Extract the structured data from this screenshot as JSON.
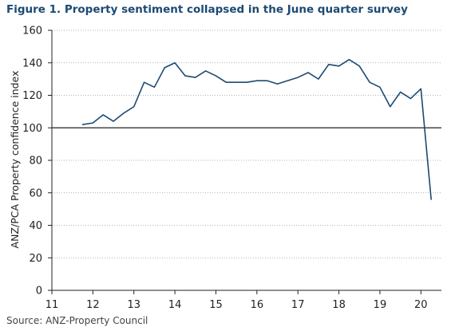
{
  "figure_title": "Figure 1. Property sentiment collapsed in the June quarter survey",
  "source": "Source: ANZ-Property Council",
  "colors": {
    "title": "#1c4a72",
    "line": "#1c4a72",
    "grid": "#9a9a9a",
    "axis": "#222222"
  },
  "chart_data": {
    "type": "line",
    "title": "Figure 1. Property sentiment collapsed in the June quarter survey",
    "xlabel": "",
    "ylabel": "ANZ/PCA Property confidence index",
    "xlim": [
      11,
      20.5
    ],
    "ylim": [
      0,
      160
    ],
    "x_ticks": [
      "11",
      "12",
      "13",
      "14",
      "15",
      "16",
      "17",
      "18",
      "19",
      "20"
    ],
    "y_ticks": [
      "0",
      "20",
      "40",
      "60",
      "80",
      "100",
      "120",
      "140",
      "160"
    ],
    "grid": "horizontal dotted",
    "reference_line": 100,
    "series": [
      {
        "x": [
          11.75,
          12.0,
          12.25,
          12.5,
          12.75,
          13.0,
          13.25,
          13.5,
          13.75,
          14.0,
          14.25,
          14.5,
          14.75,
          15.0,
          15.25,
          15.5,
          15.75,
          16.0,
          16.25,
          16.5,
          16.75,
          17.0,
          17.25,
          17.5,
          17.75,
          18.0,
          18.25,
          18.5,
          18.75,
          19.0,
          19.25,
          19.5,
          19.75,
          20.0,
          20.25
        ],
        "values": [
          102,
          103,
          108,
          104,
          109,
          113,
          128,
          125,
          137,
          140,
          132,
          131,
          135,
          132,
          128,
          128,
          128,
          129,
          129,
          127,
          129,
          131,
          134,
          130,
          139,
          138,
          142,
          138,
          128,
          125,
          113,
          122,
          118,
          124,
          56
        ]
      }
    ]
  }
}
